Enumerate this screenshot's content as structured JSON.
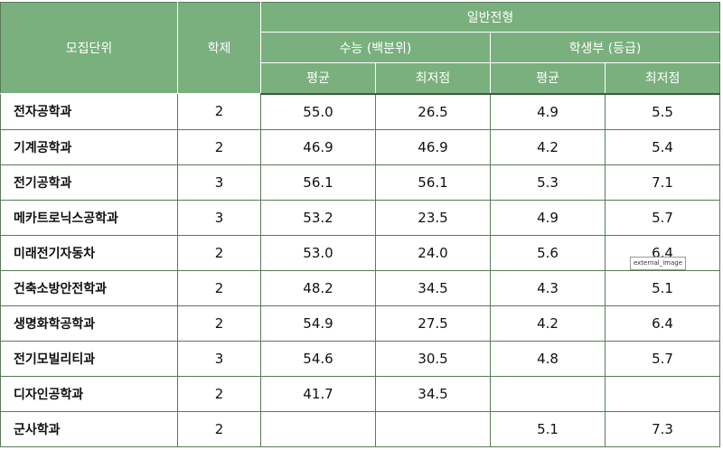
{
  "header": {
    "col_unit": "모집단위",
    "col_years": "학제",
    "general_admission": "일반전형",
    "csat": "수능 (백분위)",
    "school_record": "학생부 (등급)",
    "avg": "평균",
    "min": "최저점"
  },
  "rows": [
    {
      "unit": "전자공학과",
      "years": "2",
      "csat_avg": "55.0",
      "csat_min": "26.5",
      "sr_avg": "4.9",
      "sr_min": "5.5"
    },
    {
      "unit": "기계공학과",
      "years": "2",
      "csat_avg": "46.9",
      "csat_min": "46.9",
      "sr_avg": "4.2",
      "sr_min": "5.4"
    },
    {
      "unit": "전기공학과",
      "years": "3",
      "csat_avg": "56.1",
      "csat_min": "56.1",
      "sr_avg": "5.3",
      "sr_min": "7.1"
    },
    {
      "unit": "메카트로닉스공학과",
      "years": "3",
      "csat_avg": "53.2",
      "csat_min": "23.5",
      "sr_avg": "4.9",
      "sr_min": "5.7"
    },
    {
      "unit": "미래전기자동차",
      "years": "2",
      "csat_avg": "53.0",
      "csat_min": "24.0",
      "sr_avg": "5.6",
      "sr_min": "6.4"
    },
    {
      "unit": "건축소방안전학과",
      "years": "2",
      "csat_avg": "48.2",
      "csat_min": "34.5",
      "sr_avg": "4.3",
      "sr_min": "5.1"
    },
    {
      "unit": "생명화학공학과",
      "years": "2",
      "csat_avg": "54.9",
      "csat_min": "27.5",
      "sr_avg": "4.2",
      "sr_min": "6.4"
    },
    {
      "unit": "전기모빌리티과",
      "years": "3",
      "csat_avg": "54.6",
      "csat_min": "30.5",
      "sr_avg": "4.8",
      "sr_min": "5.7"
    },
    {
      "unit": "디자인공학과",
      "years": "2",
      "csat_avg": "41.7",
      "csat_min": "34.5",
      "sr_avg": "",
      "sr_min": ""
    },
    {
      "unit": "군사학과",
      "years": "2",
      "csat_avg": "",
      "csat_min": "",
      "sr_avg": "5.1",
      "sr_min": "7.3"
    }
  ],
  "overlay_label": "external_image"
}
